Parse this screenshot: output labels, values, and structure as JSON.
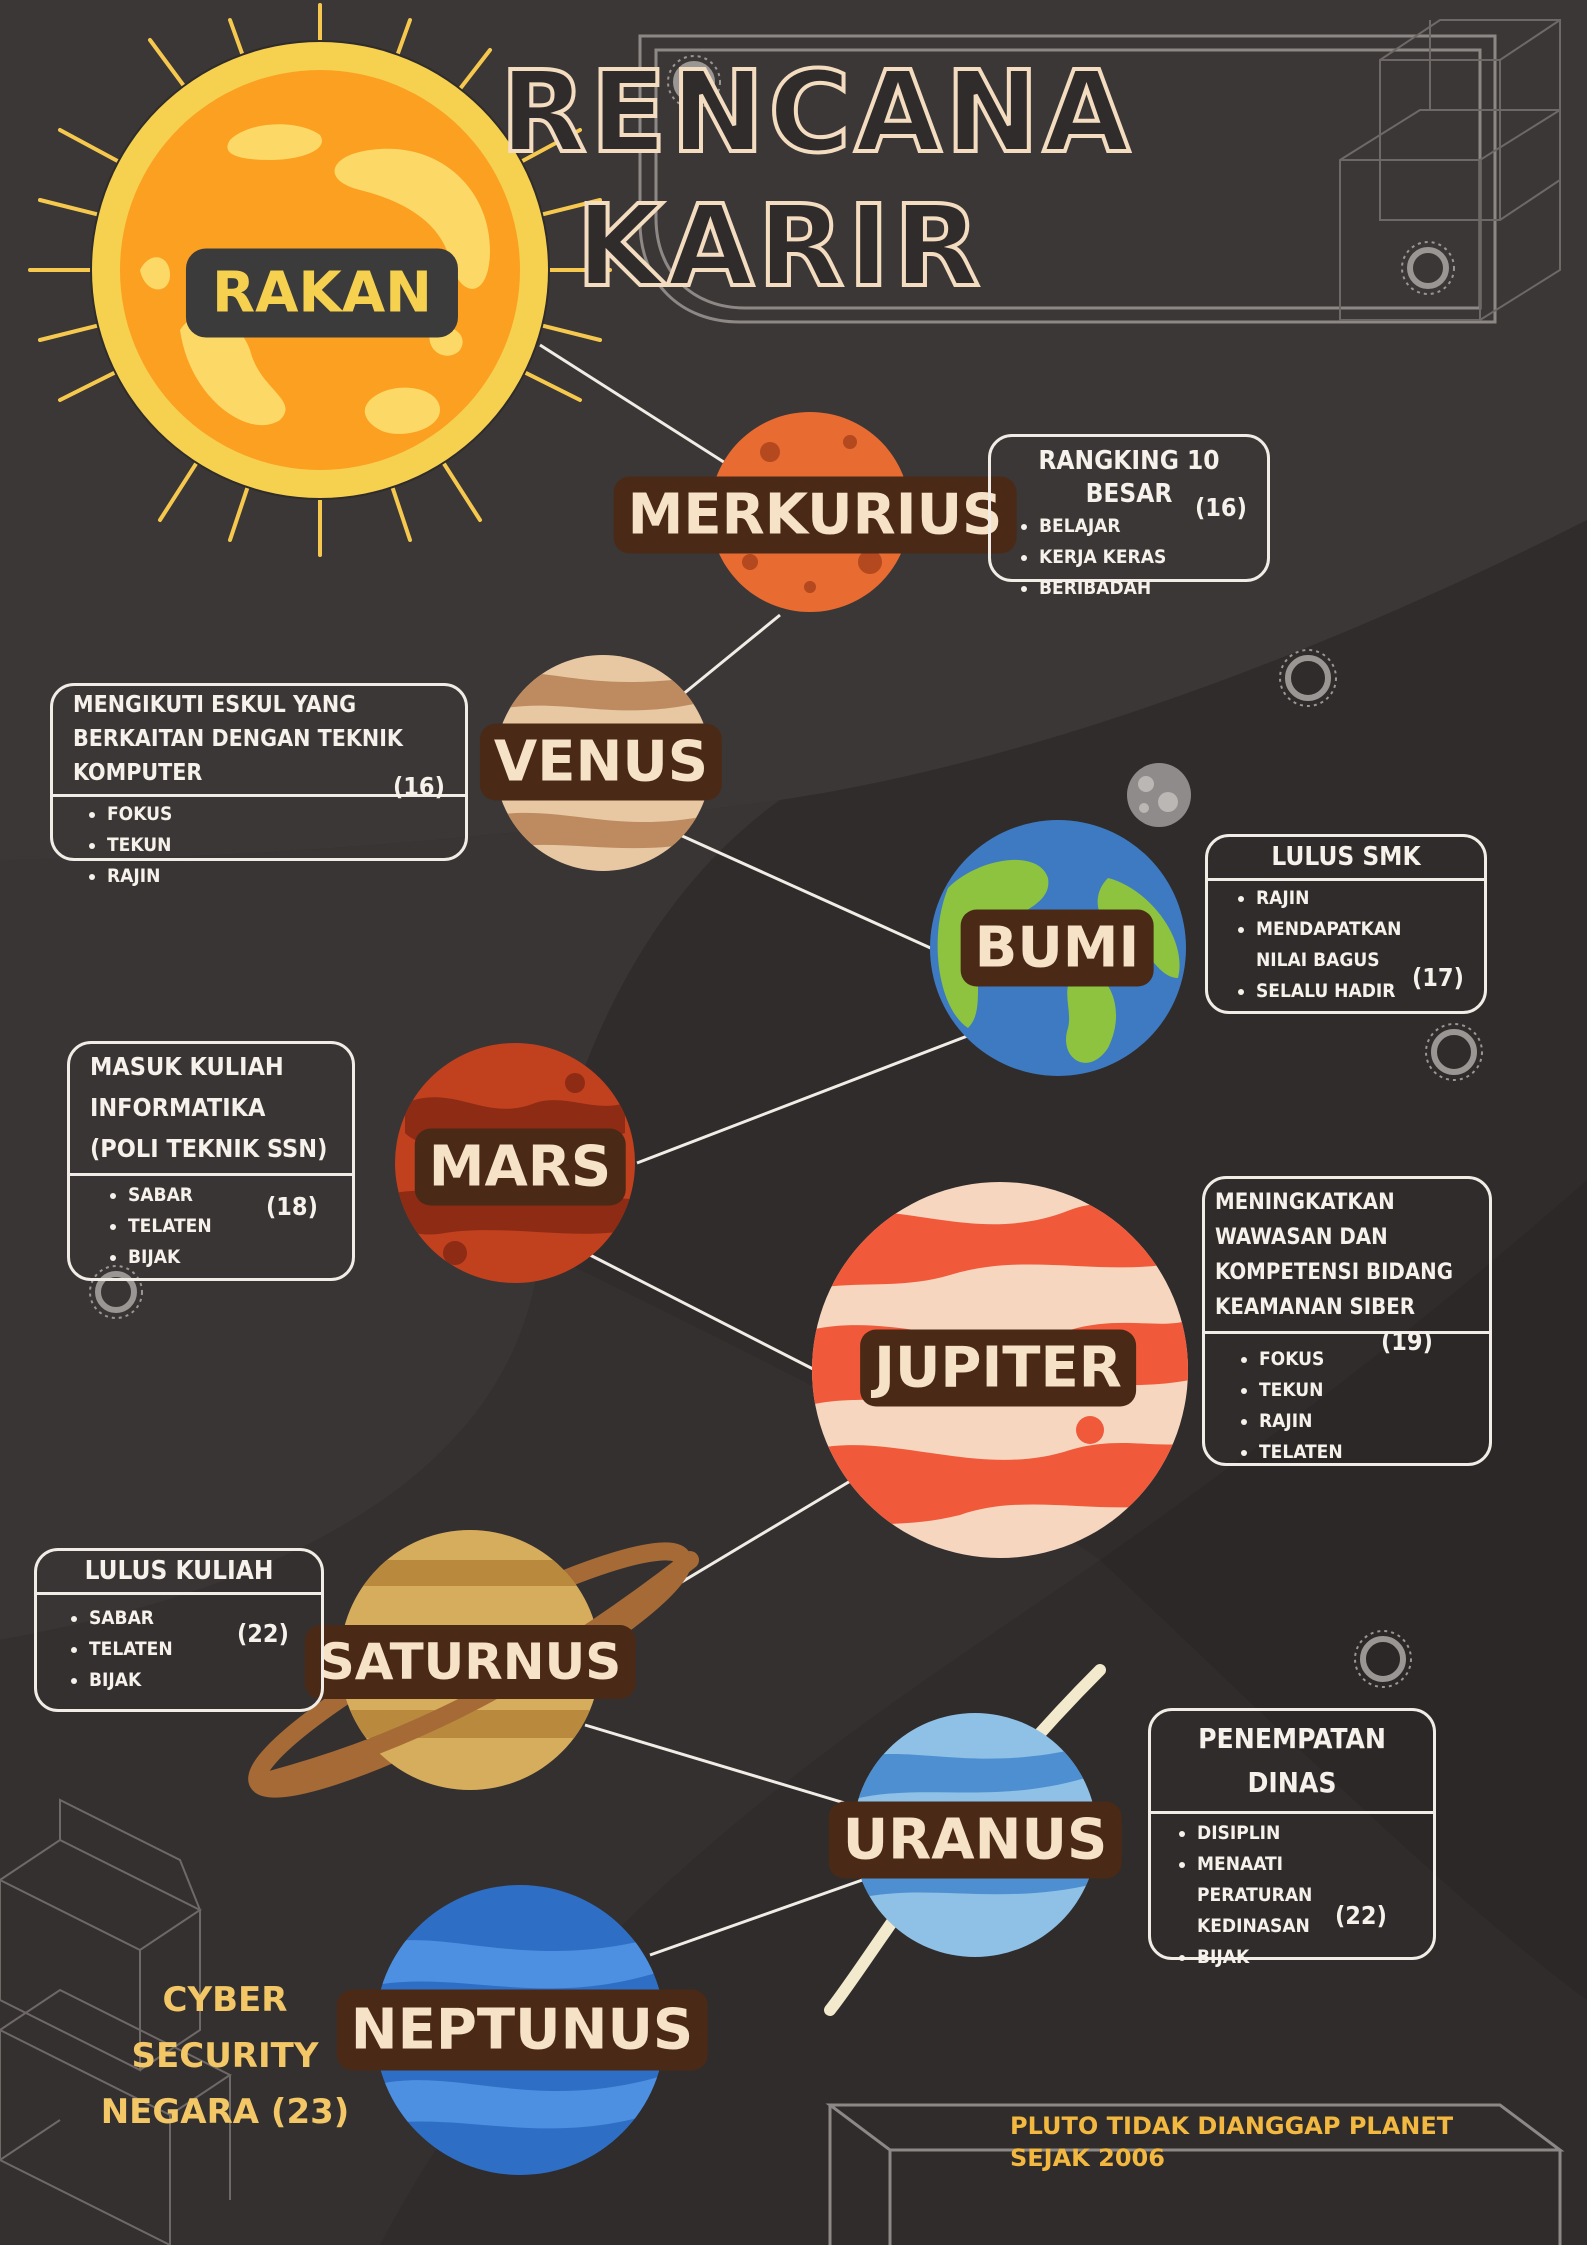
{
  "title": {
    "line1": "RENCANA",
    "line2": "KARIR"
  },
  "sun": {
    "label": "RAKAN"
  },
  "planets": {
    "merkurius": "MERKURIUS",
    "venus": "VENUS",
    "bumi": "BUMI",
    "mars": "MARS",
    "jupiter": "JUPITER",
    "saturnus": "SATURNUS",
    "uranus": "URANUS",
    "neptunus": "NEPTUNUS"
  },
  "cards": {
    "merkurius": {
      "title": "RANGKING 10 BESAR",
      "items": [
        "BELAJAR",
        "KERJA KERAS",
        "BERIBADAH"
      ],
      "age": "(16)"
    },
    "venus": {
      "title": "MENGIKUTI ESKUL YANG BERKAITAN DENGAN TEKNIK KOMPUTER",
      "items": [
        "FOKUS",
        "TEKUN",
        "RAJIN"
      ],
      "age": "(16)"
    },
    "bumi": {
      "title": "LULUS SMK",
      "items": [
        "RAJIN",
        "MENDAPATKAN NILAI BAGUS",
        "SELALU HADIR"
      ],
      "age": "(17)"
    },
    "mars": {
      "title": "MASUK KULIAH INFORMATIKA (POLI TEKNIK SSN)",
      "items": [
        "SABAR",
        "TELATEN",
        "BIJAK"
      ],
      "age": "(18)"
    },
    "jupiter": {
      "title": "MENINGKATKAN WAWASAN DAN KOMPETENSI BIDANG KEAMANAN SIBER",
      "items": [
        "FOKUS",
        "TEKUN",
        "RAJIN",
        "TELATEN"
      ],
      "age": "(19)"
    },
    "saturnus": {
      "title": "LULUS KULIAH",
      "items": [
        "SABAR",
        "TELATEN",
        "BIJAK"
      ],
      "age": "(22)"
    },
    "uranus": {
      "title": "PENEMPATAN DINAS",
      "items": [
        "DISIPLIN",
        "MENAATI PERATURAN KEDINASAN",
        "BIJAK"
      ],
      "age": "(22)"
    }
  },
  "neptunus_goal": {
    "line1": "CYBER SECURITY",
    "line2": "NEGARA (23)"
  },
  "footnote": {
    "line1": "PLUTO TIDAK DIANGGAP PLANET",
    "line2": "SEJAK 2006"
  },
  "colors": {
    "background": "#2f2c2b",
    "label_pill": "#4a2a16",
    "label_text": "#f6e2c6",
    "card_border": "#f1ece6",
    "footnote_text": "#f3b840",
    "goal_text": "#f3c766"
  }
}
